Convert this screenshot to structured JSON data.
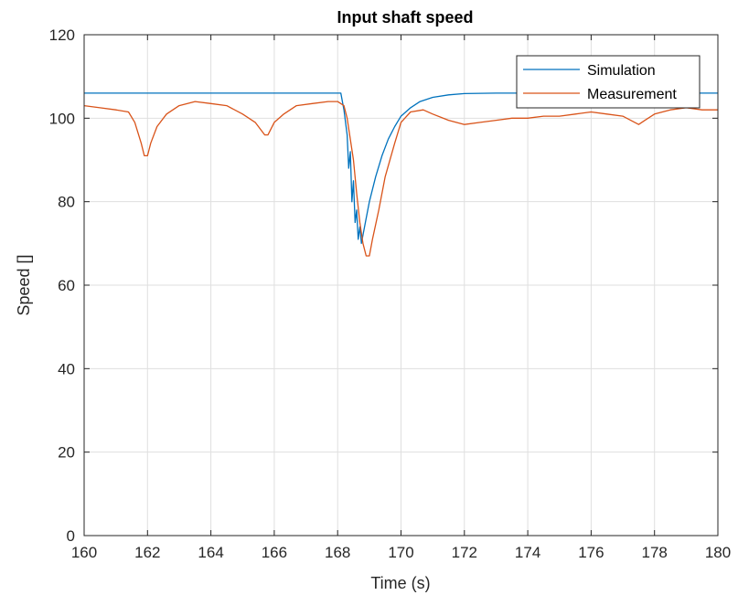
{
  "chart_data": {
    "type": "line",
    "title": "Input shaft speed",
    "xlabel": "Time (s)",
    "ylabel": "Speed []",
    "xlim": [
      160,
      180
    ],
    "ylim": [
      0,
      120
    ],
    "xticks": [
      160,
      162,
      164,
      166,
      168,
      170,
      172,
      174,
      176,
      178,
      180
    ],
    "yticks": [
      0,
      20,
      40,
      60,
      80,
      100,
      120
    ],
    "grid": true,
    "legend_position": "top-right",
    "series": [
      {
        "name": "Simulation",
        "color": "#0072BD",
        "x": [
          160,
          168.1,
          168.2,
          168.3,
          168.35,
          168.4,
          168.45,
          168.5,
          168.55,
          168.6,
          168.65,
          168.7,
          168.75,
          168.8,
          168.9,
          169.0,
          169.2,
          169.4,
          169.6,
          169.8,
          170.0,
          170.3,
          170.6,
          171.0,
          171.5,
          172.0,
          173.0,
          180
        ],
        "y": [
          106,
          106,
          102,
          96,
          88,
          92,
          80,
          85,
          75,
          78,
          71,
          74,
          70,
          72,
          76,
          80,
          86,
          91,
          95,
          98,
          100.5,
          102.5,
          104,
          105,
          105.6,
          105.9,
          106,
          106
        ]
      },
      {
        "name": "Measurement",
        "color": "#D95319",
        "x": [
          160,
          160.5,
          161,
          161.4,
          161.6,
          161.8,
          161.9,
          162.0,
          162.1,
          162.3,
          162.6,
          163.0,
          163.5,
          164.0,
          164.5,
          165.0,
          165.4,
          165.7,
          165.8,
          166.0,
          166.3,
          166.7,
          167.2,
          167.7,
          168.0,
          168.2,
          168.3,
          168.5,
          168.6,
          168.7,
          168.8,
          168.9,
          169.0,
          169.1,
          169.3,
          169.5,
          169.8,
          170.0,
          170.3,
          170.7,
          171.0,
          171.5,
          172.0,
          172.5,
          173.0,
          173.5,
          174.0,
          174.5,
          175.0,
          175.5,
          176.0,
          176.5,
          177.0,
          177.5,
          177.7,
          178.0,
          178.5,
          179.0,
          179.5,
          180
        ],
        "y": [
          103,
          102.5,
          102,
          101.5,
          99,
          94,
          91,
          91,
          94,
          98,
          101,
          103,
          104,
          103.5,
          103,
          101,
          99,
          96,
          96,
          99,
          101,
          103,
          103.5,
          104,
          104,
          103,
          100,
          90,
          82,
          75,
          70,
          67,
          67,
          71,
          78,
          86,
          94,
          99,
          101.5,
          102,
          101,
          99.5,
          98.5,
          99,
          99.5,
          100,
          100,
          100.5,
          100.5,
          101,
          101.5,
          101,
          100.5,
          98.5,
          99.5,
          101,
          102,
          102.5,
          102,
          102
        ]
      }
    ]
  }
}
